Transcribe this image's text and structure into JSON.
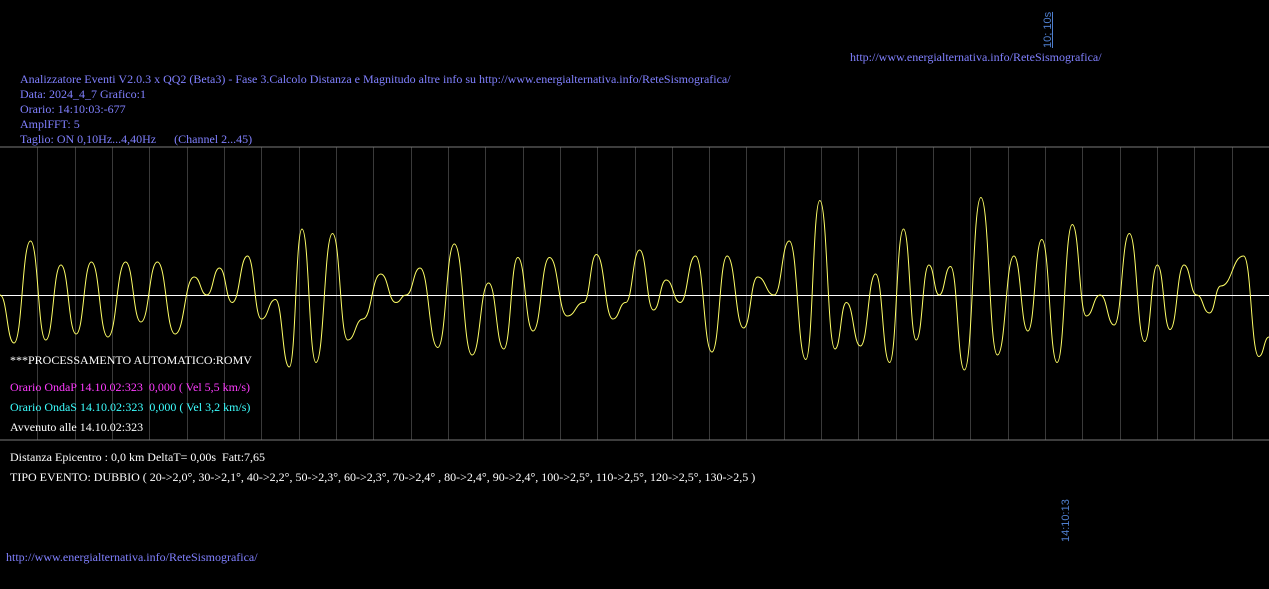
{
  "header": {
    "url_top": "http://www.energialternativa.info/ReteSismografica/",
    "title": "Analizzatore Eventi V2.0.3 x QQ2 (Beta3) - Fase 3.Calcolo Distanza e Magnitudo altre info su http://www.energialternativa.info/ReteSismografica/",
    "data_line": "Data: 2024_4_7 Grafico:1",
    "orario_line": "Orario: 14:10:03:-677",
    "ampl_line": "AmplFFT: 5",
    "taglio_line": "Taglio: ON 0,10Hz...4,40Hz      (Channel 2...45)"
  },
  "time_labels": {
    "top_vertical": "10; 10s",
    "bottom_vertical": "14:10:13"
  },
  "processing": {
    "title": "***PROCESSAMENTO AUTOMATICO:ROMV",
    "onda_p": "Orario OndaP 14.10.02:323  0,000 ( Vel 5,5 km/s)",
    "onda_s": "Orario OndaS 14.10.02:323  0,000 ( Vel 3,2 km/s)",
    "avvenuto": "Avvenuto alle 14.10.02:323"
  },
  "result": {
    "distanza": "Distanza Epicentro : 0,0 km DeltaT= 0,00s  Fatt:7,65",
    "tipo_evento": "TIPO EVENTO: DUBBIO ( 20->2,0°, 30->2,1°, 40->2,2°, 50->2,3°, 60->2,3°, 70->2,4° , 80->2,4°, 90->2,4°, 100->2,5°, 110->2,5°, 120->2,5°, 130->2,5 )"
  },
  "footer": {
    "url_bottom": "http://www.energialternativa.info/ReteSismografica/"
  },
  "colors": {
    "background": "#000000",
    "waveform": "#ffff66",
    "grid": "#3a3a3a",
    "baseline": "#ffffff",
    "text_info": "#8080ff",
    "onda_p": "#ff3cff",
    "onda_s": "#3cffff",
    "time_label": "#4f7fcf"
  },
  "chart_data": {
    "type": "line",
    "title": "",
    "xlabel": "",
    "ylabel": "",
    "ylim": [
      -1,
      1
    ],
    "grid": true,
    "extrema": [
      {
        "t": 0.0,
        "v": 0.0
      },
      {
        "t": 0.011,
        "v": -0.32
      },
      {
        "t": 0.024,
        "v": 0.36
      },
      {
        "t": 0.036,
        "v": -0.3
      },
      {
        "t": 0.048,
        "v": 0.2
      },
      {
        "t": 0.06,
        "v": -0.26
      },
      {
        "t": 0.072,
        "v": 0.22
      },
      {
        "t": 0.085,
        "v": -0.28
      },
      {
        "t": 0.099,
        "v": 0.22
      },
      {
        "t": 0.111,
        "v": -0.18
      },
      {
        "t": 0.124,
        "v": 0.22
      },
      {
        "t": 0.138,
        "v": -0.26
      },
      {
        "t": 0.153,
        "v": 0.12
      },
      {
        "t": 0.163,
        "v": 0.0
      },
      {
        "t": 0.173,
        "v": 0.18
      },
      {
        "t": 0.183,
        "v": -0.05
      },
      {
        "t": 0.195,
        "v": 0.26
      },
      {
        "t": 0.206,
        "v": -0.16
      },
      {
        "t": 0.217,
        "v": -0.03
      },
      {
        "t": 0.228,
        "v": -0.48
      },
      {
        "t": 0.238,
        "v": 0.44
      },
      {
        "t": 0.249,
        "v": -0.45
      },
      {
        "t": 0.262,
        "v": 0.41
      },
      {
        "t": 0.274,
        "v": -0.3
      },
      {
        "t": 0.286,
        "v": -0.16
      },
      {
        "t": 0.3,
        "v": 0.14
      },
      {
        "t": 0.312,
        "v": -0.05
      },
      {
        "t": 0.32,
        "v": 0.0
      },
      {
        "t": 0.331,
        "v": 0.18
      },
      {
        "t": 0.345,
        "v": -0.35
      },
      {
        "t": 0.358,
        "v": 0.34
      },
      {
        "t": 0.372,
        "v": -0.4
      },
      {
        "t": 0.385,
        "v": 0.08
      },
      {
        "t": 0.397,
        "v": -0.36
      },
      {
        "t": 0.408,
        "v": 0.25
      },
      {
        "t": 0.42,
        "v": -0.24
      },
      {
        "t": 0.433,
        "v": 0.25
      },
      {
        "t": 0.447,
        "v": -0.14
      },
      {
        "t": 0.46,
        "v": -0.05
      },
      {
        "t": 0.47,
        "v": 0.27
      },
      {
        "t": 0.483,
        "v": -0.16
      },
      {
        "t": 0.493,
        "v": -0.05
      },
      {
        "t": 0.504,
        "v": 0.3
      },
      {
        "t": 0.515,
        "v": -0.1
      },
      {
        "t": 0.525,
        "v": 0.1
      },
      {
        "t": 0.536,
        "v": -0.05
      },
      {
        "t": 0.548,
        "v": 0.26
      },
      {
        "t": 0.561,
        "v": -0.38
      },
      {
        "t": 0.573,
        "v": 0.26
      },
      {
        "t": 0.586,
        "v": -0.22
      },
      {
        "t": 0.597,
        "v": 0.12
      },
      {
        "t": 0.61,
        "v": 0.0
      },
      {
        "t": 0.622,
        "v": 0.36
      },
      {
        "t": 0.635,
        "v": -0.43
      },
      {
        "t": 0.646,
        "v": 0.63
      },
      {
        "t": 0.658,
        "v": -0.36
      },
      {
        "t": 0.667,
        "v": -0.05
      },
      {
        "t": 0.678,
        "v": -0.34
      },
      {
        "t": 0.69,
        "v": 0.14
      },
      {
        "t": 0.701,
        "v": -0.45
      },
      {
        "t": 0.712,
        "v": 0.44
      },
      {
        "t": 0.722,
        "v": -0.3
      },
      {
        "t": 0.732,
        "v": 0.2
      },
      {
        "t": 0.74,
        "v": 0.0
      },
      {
        "t": 0.749,
        "v": 0.19
      },
      {
        "t": 0.76,
        "v": -0.5
      },
      {
        "t": 0.773,
        "v": 0.65
      },
      {
        "t": 0.786,
        "v": -0.4
      },
      {
        "t": 0.799,
        "v": 0.26
      },
      {
        "t": 0.81,
        "v": -0.24
      },
      {
        "t": 0.821,
        "v": 0.37
      },
      {
        "t": 0.833,
        "v": -0.45
      },
      {
        "t": 0.845,
        "v": 0.47
      },
      {
        "t": 0.856,
        "v": -0.14
      },
      {
        "t": 0.867,
        "v": 0.0
      },
      {
        "t": 0.878,
        "v": -0.2
      },
      {
        "t": 0.89,
        "v": 0.41
      },
      {
        "t": 0.902,
        "v": -0.31
      },
      {
        "t": 0.912,
        "v": 0.2
      },
      {
        "t": 0.922,
        "v": -0.23
      },
      {
        "t": 0.933,
        "v": 0.2
      },
      {
        "t": 0.943,
        "v": 0.0
      },
      {
        "t": 0.953,
        "v": -0.12
      },
      {
        "t": 0.962,
        "v": 0.06
      },
      {
        "t": 0.98,
        "v": 0.26
      },
      {
        "t": 0.992,
        "v": -0.41
      },
      {
        "t": 1.0,
        "v": -0.28
      }
    ]
  }
}
